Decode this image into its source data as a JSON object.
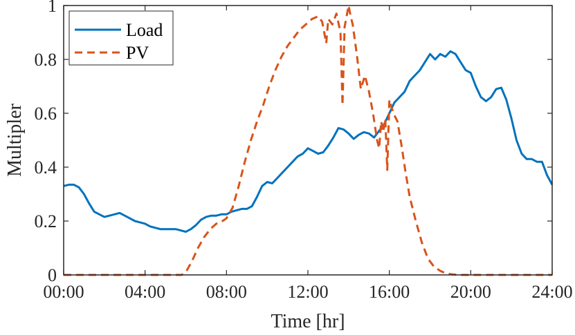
{
  "chart_data": {
    "type": "line",
    "title": "",
    "xlabel": "Time [hr]",
    "ylabel": "Multipler",
    "xlim": [
      0,
      24
    ],
    "ylim": [
      0,
      1
    ],
    "x_ticks": [
      0,
      4,
      8,
      12,
      16,
      20,
      24
    ],
    "x_tick_labels": [
      "00:00",
      "04:00",
      "08:00",
      "12:00",
      "16:00",
      "20:00",
      "24:00"
    ],
    "y_ticks": [
      0,
      0.2,
      0.4,
      0.6,
      0.8,
      1
    ],
    "y_tick_labels": [
      "0",
      "0.2",
      "0.4",
      "0.6",
      "0.8",
      "1"
    ],
    "grid": false,
    "legend_position": "top-left",
    "series": [
      {
        "name": "Load",
        "color": "#0072BD",
        "style": "solid",
        "x": [
          0,
          0.25,
          0.5,
          0.75,
          1.0,
          1.25,
          1.5,
          1.75,
          2.0,
          2.25,
          2.5,
          2.75,
          3.0,
          3.25,
          3.5,
          3.75,
          4.0,
          4.25,
          4.5,
          4.75,
          5.0,
          5.25,
          5.5,
          5.75,
          6.0,
          6.25,
          6.5,
          6.75,
          7.0,
          7.25,
          7.5,
          7.75,
          8.0,
          8.25,
          8.5,
          8.75,
          9.0,
          9.25,
          9.5,
          9.75,
          10.0,
          10.25,
          10.5,
          10.75,
          11.0,
          11.25,
          11.5,
          11.75,
          12.0,
          12.25,
          12.5,
          12.75,
          13.0,
          13.25,
          13.5,
          13.75,
          14.0,
          14.25,
          14.5,
          14.75,
          15.0,
          15.25,
          15.5,
          15.75,
          16.0,
          16.25,
          16.5,
          16.75,
          17.0,
          17.25,
          17.5,
          17.75,
          18.0,
          18.25,
          18.5,
          18.75,
          19.0,
          19.25,
          19.5,
          19.75,
          20.0,
          20.25,
          20.5,
          20.75,
          21.0,
          21.25,
          21.5,
          21.75,
          22.0,
          22.25,
          22.5,
          22.75,
          23.0,
          23.25,
          23.5,
          23.75,
          24.0
        ],
        "values": [
          0.33,
          0.335,
          0.335,
          0.325,
          0.3,
          0.265,
          0.235,
          0.225,
          0.215,
          0.22,
          0.225,
          0.23,
          0.22,
          0.21,
          0.2,
          0.195,
          0.19,
          0.18,
          0.175,
          0.17,
          0.17,
          0.17,
          0.17,
          0.165,
          0.16,
          0.17,
          0.185,
          0.205,
          0.215,
          0.22,
          0.22,
          0.225,
          0.225,
          0.235,
          0.24,
          0.245,
          0.245,
          0.255,
          0.29,
          0.33,
          0.345,
          0.34,
          0.36,
          0.38,
          0.4,
          0.42,
          0.44,
          0.45,
          0.47,
          0.46,
          0.45,
          0.455,
          0.48,
          0.51,
          0.545,
          0.54,
          0.525,
          0.505,
          0.52,
          0.53,
          0.525,
          0.51,
          0.535,
          0.56,
          0.6,
          0.64,
          0.66,
          0.68,
          0.72,
          0.74,
          0.76,
          0.79,
          0.82,
          0.8,
          0.82,
          0.81,
          0.83,
          0.82,
          0.79,
          0.76,
          0.75,
          0.7,
          0.66,
          0.645,
          0.66,
          0.69,
          0.695,
          0.65,
          0.58,
          0.5,
          0.45,
          0.43,
          0.43,
          0.42,
          0.42,
          0.37,
          0.335
        ]
      },
      {
        "name": "PV",
        "color": "#D95319",
        "style": "dashed",
        "x": [
          0,
          5.8,
          6.0,
          6.3,
          6.6,
          6.9,
          7.2,
          7.5,
          7.8,
          8.0,
          8.3,
          8.6,
          8.9,
          9.2,
          9.5,
          9.8,
          10.1,
          10.4,
          10.7,
          11.0,
          11.3,
          11.6,
          11.9,
          12.2,
          12.5,
          12.7,
          12.9,
          13.0,
          13.2,
          13.4,
          13.6,
          13.7,
          13.8,
          13.9,
          14.0,
          14.1,
          14.2,
          14.4,
          14.6,
          14.8,
          15.0,
          15.2,
          15.4,
          15.5,
          15.6,
          15.7,
          15.8,
          15.9,
          16.0,
          16.2,
          16.4,
          16.6,
          16.8,
          17.0,
          17.3,
          17.6,
          17.9,
          18.2,
          18.5,
          18.8,
          19.1,
          19.4,
          19.7,
          20.0,
          24.0
        ],
        "values": [
          0,
          0,
          0.01,
          0.05,
          0.1,
          0.14,
          0.17,
          0.19,
          0.2,
          0.21,
          0.25,
          0.33,
          0.42,
          0.5,
          0.57,
          0.63,
          0.7,
          0.76,
          0.81,
          0.85,
          0.88,
          0.91,
          0.93,
          0.95,
          0.96,
          0.94,
          0.86,
          0.95,
          0.93,
          0.97,
          0.9,
          0.63,
          0.92,
          0.96,
          1.0,
          0.96,
          0.93,
          0.82,
          0.69,
          0.74,
          0.68,
          0.6,
          0.5,
          0.47,
          0.57,
          0.53,
          0.58,
          0.39,
          0.65,
          0.6,
          0.57,
          0.48,
          0.38,
          0.29,
          0.2,
          0.12,
          0.06,
          0.03,
          0.015,
          0.005,
          0.002,
          0.0,
          0.0,
          0.0,
          0.0
        ]
      }
    ]
  }
}
